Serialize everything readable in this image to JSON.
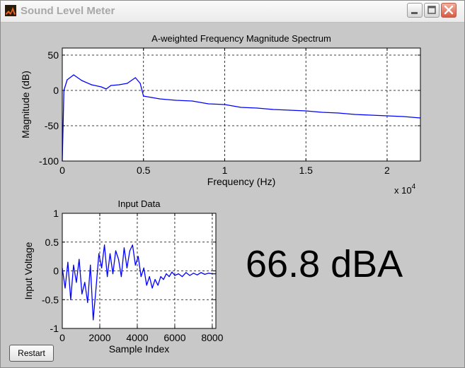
{
  "window": {
    "title": "Sound Level Meter",
    "app_icon": "matlab-icon",
    "controls": {
      "minimize_icon": "minimize-icon",
      "maximize_icon": "maximize-icon",
      "close_icon": "close-icon"
    }
  },
  "readout": {
    "value": "66.8 dBA"
  },
  "restart_button": {
    "label": "Restart"
  },
  "colors": {
    "window_bg": "#c8c8c8",
    "plot_bg": "#ffffff",
    "trace": "#0000ff",
    "axis": "#000000"
  },
  "chart_data": [
    {
      "type": "line",
      "title": "A-weighted Frequency Magnitude Spectrum",
      "xlabel": "Frequency (Hz)",
      "ylabel": "Magnitude (dB)",
      "x_multiplier_label": "x 10",
      "x_multiplier_exponent": "4",
      "xlim": [
        0,
        22050
      ],
      "ylim": [
        -100,
        60
      ],
      "xticks": [
        0,
        5000,
        10000,
        15000,
        20000
      ],
      "xtick_labels": [
        "0",
        "0.5",
        "1",
        "1.5",
        "2"
      ],
      "yticks": [
        -100,
        -50,
        0,
        50
      ],
      "ytick_labels": [
        "-100",
        "-50",
        "0",
        "50"
      ],
      "grid": true,
      "series": [
        {
          "x": [
            0,
            100,
            300,
            700,
            1200,
            1800,
            2400,
            2700,
            3000,
            3500,
            4000,
            4500,
            4800,
            5000,
            5500,
            6000,
            7000,
            8000,
            9000,
            10000,
            11000,
            12000,
            13000,
            14000,
            15000,
            16000,
            17000,
            18000,
            19000,
            20000,
            21000,
            22050
          ],
          "values": [
            -100,
            0,
            15,
            22,
            14,
            8,
            5,
            2,
            7,
            8,
            10,
            18,
            10,
            -8,
            -10,
            -12,
            -14,
            -15,
            -19,
            -20,
            -24,
            -25,
            -27,
            -28,
            -29,
            -31,
            -32,
            -34,
            -35,
            -36,
            -37,
            -39
          ]
        }
      ]
    },
    {
      "type": "line",
      "title": "Input Data",
      "xlabel": "Sample Index",
      "ylabel": "Input Voltage",
      "xlim": [
        0,
        8192
      ],
      "ylim": [
        -1,
        1
      ],
      "xticks": [
        0,
        2000,
        4000,
        6000,
        8000
      ],
      "xtick_labels": [
        "0",
        "2000",
        "4000",
        "6000",
        "8000"
      ],
      "yticks": [
        -1,
        -0.5,
        0,
        0.5,
        1
      ],
      "ytick_labels": [
        "-1",
        "-0.5",
        "0",
        "0.5",
        "1"
      ],
      "grid": true,
      "series": [
        {
          "x": [
            0,
            150,
            300,
            450,
            600,
            750,
            900,
            1050,
            1200,
            1350,
            1500,
            1650,
            1800,
            1950,
            2100,
            2250,
            2400,
            2550,
            2700,
            2850,
            3000,
            3150,
            3300,
            3450,
            3600,
            3750,
            3900,
            4050,
            4200,
            4350,
            4500,
            4650,
            4800,
            4950,
            5100,
            5250,
            5400,
            5550,
            5700,
            5850,
            6000,
            6200,
            6400,
            6600,
            6800,
            7000,
            7200,
            7400,
            7600,
            7800,
            8000,
            8192
          ],
          "values": [
            0.05,
            -0.3,
            0.15,
            -0.5,
            0.1,
            -0.2,
            0.2,
            -0.4,
            -0.2,
            -0.55,
            0.1,
            -0.85,
            -0.3,
            0.3,
            0.05,
            0.45,
            -0.1,
            0.3,
            -0.05,
            0.35,
            0.2,
            -0.1,
            0.4,
            0.05,
            0.35,
            0.45,
            0.1,
            0.25,
            -0.1,
            0.05,
            -0.25,
            -0.1,
            -0.3,
            -0.15,
            -0.25,
            -0.1,
            -0.15,
            -0.05,
            -0.1,
            -0.02,
            -0.08,
            -0.05,
            -0.1,
            -0.03,
            -0.08,
            -0.04,
            -0.07,
            -0.03,
            -0.06,
            -0.04,
            -0.05,
            -0.05
          ]
        }
      ]
    }
  ]
}
